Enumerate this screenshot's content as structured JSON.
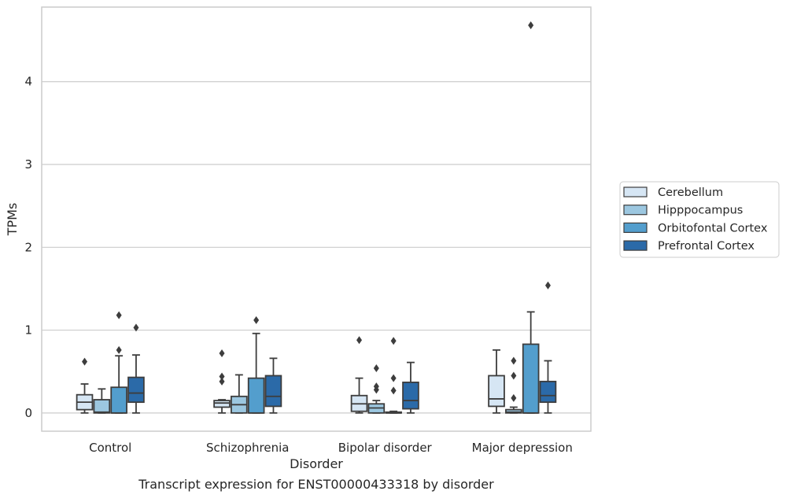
{
  "caption": "Transcript expression for ENST00000433318 by disorder",
  "chart_data": {
    "type": "box",
    "xlabel": "Disorder",
    "ylabel": "TPMs",
    "ylim": [
      -0.22,
      4.9
    ],
    "yticks": [
      0,
      1,
      2,
      3,
      4
    ],
    "grid": "horizontal",
    "legend_position": "right",
    "categories": [
      "Control",
      "Schizophrenia",
      "Bipolar disorder",
      "Major depression"
    ],
    "series": [
      {
        "name": "Cerebellum",
        "color": "#d6e6f4",
        "boxes": [
          {
            "min": 0.0,
            "q1": 0.04,
            "median": 0.13,
            "q3": 0.22,
            "max": 0.35,
            "outliers": [
              0.62
            ]
          },
          {
            "min": 0.0,
            "q1": 0.07,
            "median": 0.12,
            "q3": 0.15,
            "max": 0.16,
            "outliers": [
              0.38,
              0.44,
              0.72
            ]
          },
          {
            "min": 0.0,
            "q1": 0.02,
            "median": 0.11,
            "q3": 0.21,
            "max": 0.42,
            "outliers": [
              0.88
            ]
          },
          {
            "min": 0.0,
            "q1": 0.08,
            "median": 0.17,
            "q3": 0.45,
            "max": 0.76,
            "outliers": []
          }
        ]
      },
      {
        "name": "Hipppocampus",
        "color": "#9cc7e0",
        "boxes": [
          {
            "min": 0.0,
            "q1": 0.0,
            "median": 0.01,
            "q3": 0.16,
            "max": 0.29,
            "outliers": []
          },
          {
            "min": 0.0,
            "q1": 0.0,
            "median": 0.1,
            "q3": 0.2,
            "max": 0.46,
            "outliers": []
          },
          {
            "min": 0.0,
            "q1": 0.0,
            "median": 0.06,
            "q3": 0.11,
            "max": 0.15,
            "outliers": [
              0.28,
              0.32,
              0.54
            ]
          },
          {
            "min": 0.0,
            "q1": 0.0,
            "median": 0.01,
            "q3": 0.04,
            "max": 0.07,
            "outliers": [
              0.18,
              0.45,
              0.63
            ]
          }
        ]
      },
      {
        "name": "Orbitofontal Cortex",
        "color": "#539ecd",
        "boxes": [
          {
            "min": 0.0,
            "q1": 0.0,
            "median": 0.0,
            "q3": 0.31,
            "max": 0.69,
            "outliers": [
              0.76,
              1.18
            ]
          },
          {
            "min": 0.0,
            "q1": 0.0,
            "median": 0.0,
            "q3": 0.42,
            "max": 0.96,
            "outliers": [
              1.12
            ]
          },
          {
            "min": 0.0,
            "q1": 0.0,
            "median": 0.0,
            "q3": 0.01,
            "max": 0.02,
            "outliers": [
              0.27,
              0.42,
              0.87
            ]
          },
          {
            "min": 0.0,
            "q1": 0.0,
            "median": 0.0,
            "q3": 0.83,
            "max": 1.22,
            "outliers": [
              4.68
            ]
          }
        ]
      },
      {
        "name": "Prefrontal Cortex",
        "color": "#2b6aa8",
        "boxes": [
          {
            "min": 0.0,
            "q1": 0.13,
            "median": 0.24,
            "q3": 0.43,
            "max": 0.7,
            "outliers": [
              1.03
            ]
          },
          {
            "min": 0.0,
            "q1": 0.08,
            "median": 0.2,
            "q3": 0.45,
            "max": 0.66,
            "outliers": []
          },
          {
            "min": 0.0,
            "q1": 0.05,
            "median": 0.15,
            "q3": 0.37,
            "max": 0.61,
            "outliers": []
          },
          {
            "min": 0.0,
            "q1": 0.13,
            "median": 0.21,
            "q3": 0.38,
            "max": 0.63,
            "outliers": [
              1.54
            ]
          }
        ]
      }
    ]
  }
}
